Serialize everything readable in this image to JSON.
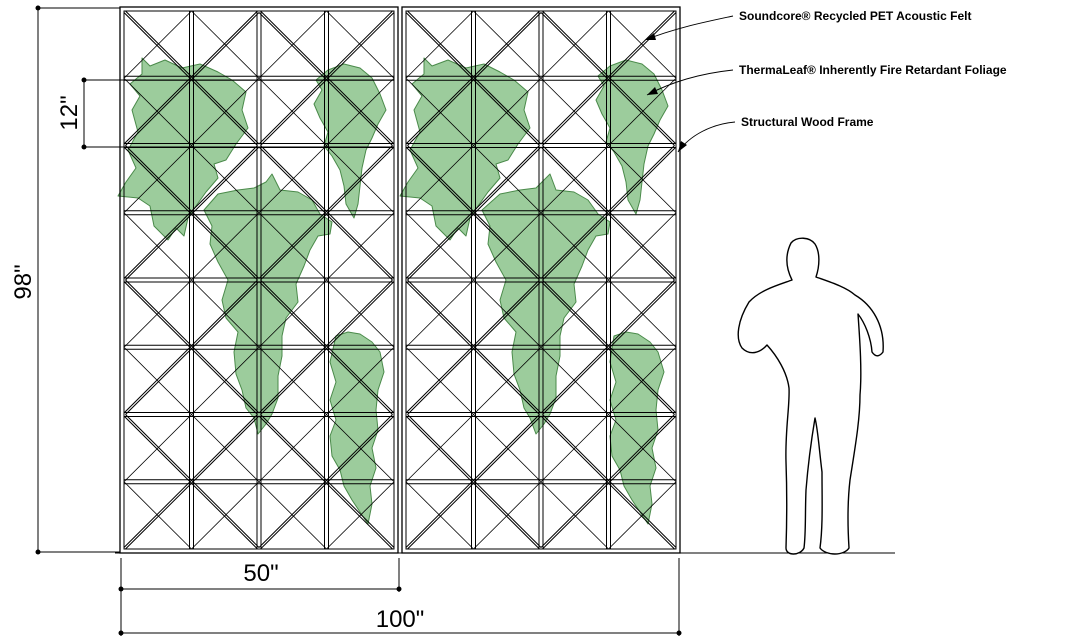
{
  "dimensions": {
    "height": "98\"",
    "module": "12\"",
    "panel_width": "50\"",
    "total_width": "100\""
  },
  "callouts": [
    {
      "text": "Soundcore® Recycled PET Acoustic Felt"
    },
    {
      "text": "ThermaLeaf® Inherently Fire Retardant Foliage"
    },
    {
      "text": "Structural Wood Frame"
    }
  ],
  "colors": {
    "foliage_fill": "#9ccc9c",
    "foliage_stroke": "#4a8a4a",
    "line": "#000000"
  }
}
